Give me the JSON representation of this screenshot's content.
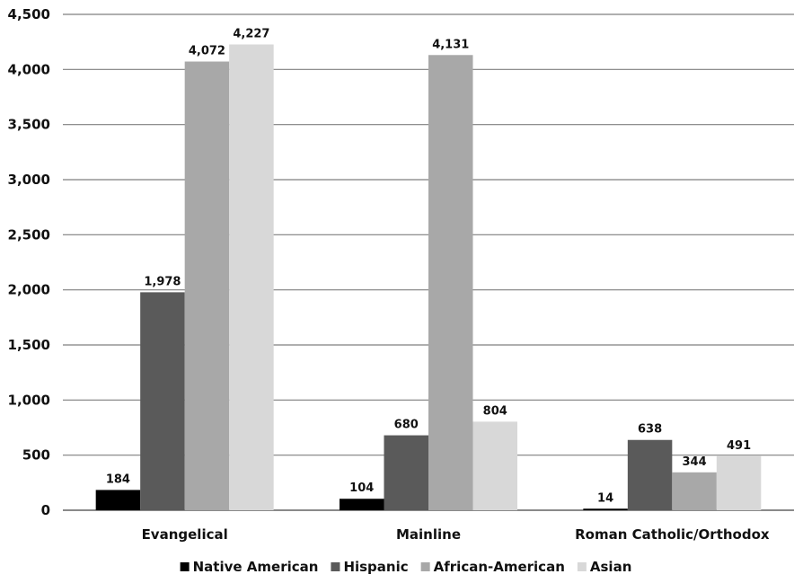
{
  "chart_data": {
    "type": "bar",
    "title": "",
    "xlabel": "",
    "ylabel": "",
    "categories": [
      "Evangelical",
      "Mainline",
      "Roman Catholic/Orthodox"
    ],
    "series": [
      {
        "name": "Native American",
        "color": "#000000",
        "values": [
          184,
          104,
          14
        ]
      },
      {
        "name": "Hispanic",
        "color": "#5a5a5a",
        "values": [
          1978,
          680,
          638
        ]
      },
      {
        "name": "African-American",
        "color": "#a8a8a8",
        "values": [
          4072,
          4131,
          344
        ]
      },
      {
        "name": "Asian",
        "color": "#d8d8d8",
        "values": [
          4227,
          804,
          491
        ]
      }
    ],
    "ylim": [
      0,
      4500
    ],
    "yticks": [
      0,
      500,
      1000,
      1500,
      2000,
      2500,
      3000,
      3500,
      4000,
      4500
    ],
    "ytick_labels": [
      "0",
      "500",
      "1,000",
      "1,500",
      "2,000",
      "2,500",
      "3,000",
      "3,500",
      "4,000",
      "4,500"
    ],
    "data_labels": [
      [
        "184",
        "104",
        "14"
      ],
      [
        "1,978",
        "680",
        "638"
      ],
      [
        "4,072",
        "4,131",
        "344"
      ],
      [
        "4,227",
        "804",
        "491"
      ]
    ],
    "grid": true,
    "legend_position": "bottom"
  }
}
